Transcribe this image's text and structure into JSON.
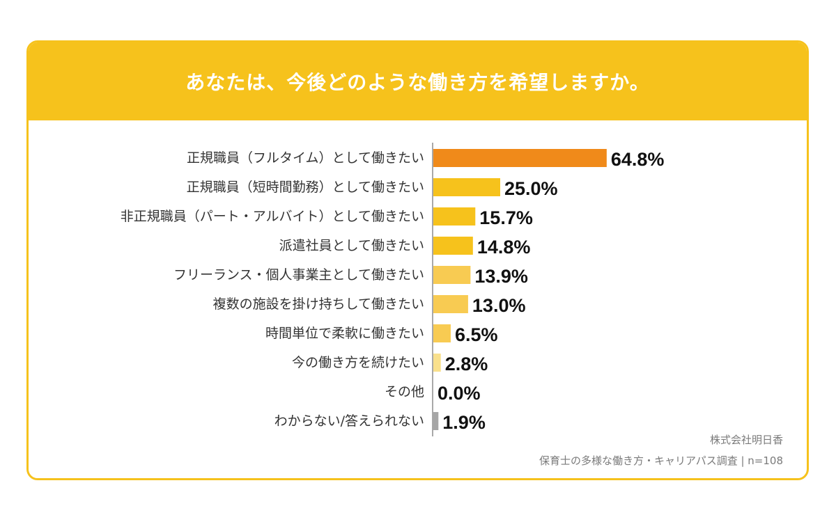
{
  "header": {
    "title": "あなたは、今後どのような働き方を希望しますか。"
  },
  "source": {
    "company": "株式会社明日香",
    "survey": "保育士の多様な働き方・キャリアパス調査 | n=108"
  },
  "colors": {
    "header": "#f6c21c",
    "highlight": "#f08a1a",
    "primary": "#f6c21c",
    "secondary": "#f8cb52",
    "light": "#f9e08c",
    "gray": "#a6a6a6"
  },
  "chart_data": {
    "type": "bar",
    "orientation": "horizontal",
    "title": "あなたは、今後どのような働き方を希望しますか。",
    "unit": "%",
    "xlim": [
      0,
      100
    ],
    "grid": false,
    "categories": [
      "正規職員（フルタイム）として働きたい",
      "正規職員（短時間勤務）として働きたい",
      "非正規職員（パート・アルバイト）として働きたい",
      "派遣社員として働きたい",
      "フリーランス・個人事業主として働きたい",
      "複数の施設を掛け持ちして働きたい",
      "時間単位で柔軟に働きたい",
      "今の働き方を続けたい",
      "その他",
      "わからない/答えられない"
    ],
    "values": [
      64.8,
      25.0,
      15.7,
      14.8,
      13.9,
      13.0,
      6.5,
      2.8,
      0.0,
      1.9
    ],
    "value_labels": [
      "64.8%",
      "25.0%",
      "15.7%",
      "14.8%",
      "13.9%",
      "13.0%",
      "6.5%",
      "2.8%",
      "0.0%",
      "1.9%"
    ],
    "bar_colors": [
      "#f08a1a",
      "#f6c21c",
      "#f6c21c",
      "#f6c21c",
      "#f8cb52",
      "#f8cb52",
      "#f8cb52",
      "#f9e08c",
      "#f9e08c",
      "#a6a6a6"
    ]
  }
}
